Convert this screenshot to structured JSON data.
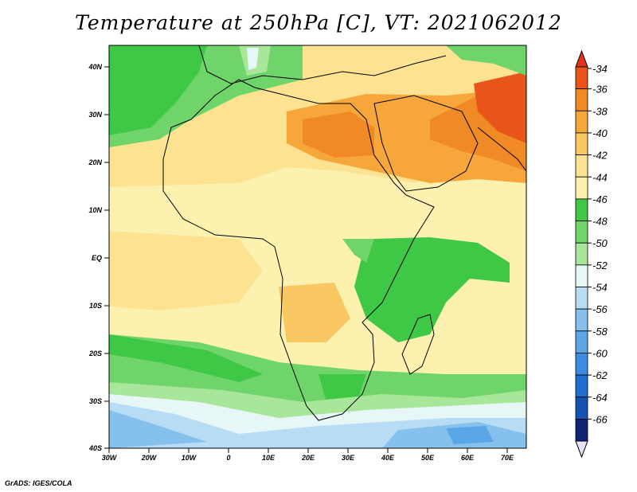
{
  "title": "Temperature at 250hPa [C], VT: 2021062012",
  "credit": "GrADS: IGES/COLA",
  "map": {
    "lat_ticks": [
      "40N",
      "30N",
      "20N",
      "10N",
      "EQ",
      "10S",
      "20S",
      "30S",
      "40S"
    ],
    "lon_ticks": [
      "30W",
      "20W",
      "10W",
      "0",
      "10E",
      "20E",
      "30E",
      "40E",
      "50E",
      "60E",
      "70E"
    ]
  },
  "colorbar": {
    "labels": [
      "-34",
      "-36",
      "-38",
      "-40",
      "-42",
      "-44",
      "-46",
      "-48",
      "-50",
      "-52",
      "-54",
      "-56",
      "-58",
      "-60",
      "-62",
      "-64",
      "-66"
    ],
    "colors": [
      "#e8541a",
      "#f08a24",
      "#f7a63a",
      "#fac862",
      "#fde391",
      "#fdf1b0",
      "#3fc846",
      "#6fd56a",
      "#a8e69a",
      "#e7f6f6",
      "#b7dcf3",
      "#86c1ee",
      "#5aa6e7",
      "#3a8ce0",
      "#1f6ed0",
      "#1553b0",
      "#0c2378"
    ],
    "top_tip_color": "#e2331a",
    "bottom_tip_color": "#e6e0f8"
  }
}
